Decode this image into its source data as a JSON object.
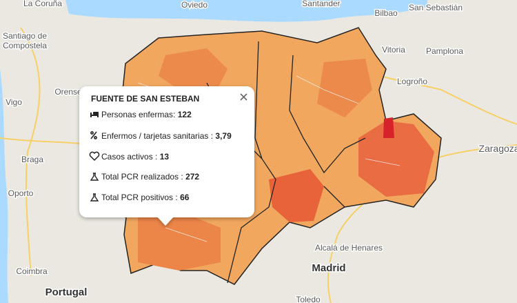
{
  "map": {
    "labels": [
      "La Coruña",
      "Oviedo",
      "Santander",
      "Bilbao",
      "San Sebastián",
      "Santiago de",
      "Compostela",
      "Vitoria",
      "Pamplona",
      "Logroño",
      "Orense",
      "Vigo",
      "Braga",
      "Zaragoza",
      "Oporto",
      "Coimbra",
      "Portugal",
      "Alcalá de Henares",
      "Madrid",
      "Toledo"
    ]
  },
  "popup": {
    "title": "FUENTE DE SAN ESTEBAN",
    "rows": [
      {
        "label": "Personas enfermas:",
        "value": "122"
      },
      {
        "label": "Enfermos / tarjetas sanitarias :",
        "value": "3,79"
      },
      {
        "label": "Casos activos :",
        "value": "13"
      },
      {
        "label": "Total PCR realizados :",
        "value": "272"
      },
      {
        "label": "Total PCR positivos :",
        "value": "66"
      }
    ]
  }
}
